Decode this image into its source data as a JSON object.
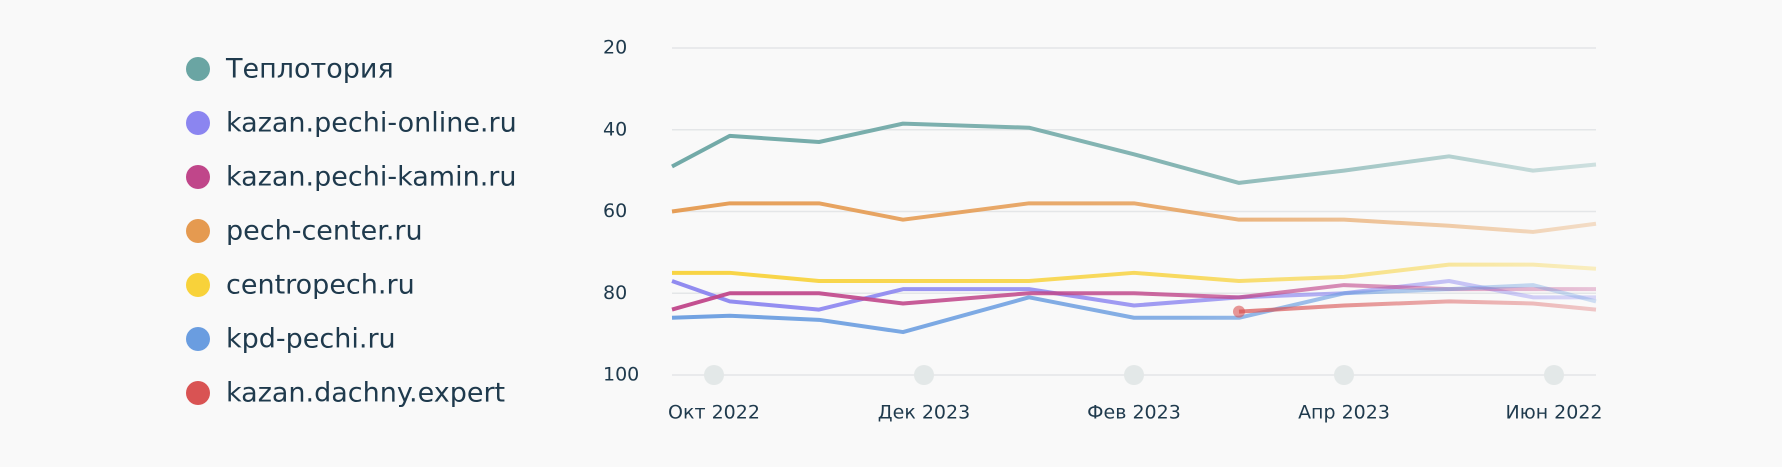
{
  "chart_data": {
    "type": "line",
    "x": [
      -0.4,
      0.15,
      1,
      1.8,
      3,
      4,
      5,
      6,
      7,
      7.8,
      8.4
    ],
    "xlim": [
      -0.4,
      8.4
    ],
    "xticks": [
      {
        "value": 0,
        "label": "Окт 2022"
      },
      {
        "value": 2,
        "label": "Дек 2023"
      },
      {
        "value": 4,
        "label": "Фев 2023"
      },
      {
        "value": 6,
        "label": "Апр 2023"
      },
      {
        "value": 8,
        "label": "Июн 2022"
      }
    ],
    "ylim": [
      20,
      100
    ],
    "y_reversed": true,
    "yticks": [
      20,
      40,
      60,
      80,
      100
    ],
    "grid": true,
    "series": [
      {
        "name": "Теплотория",
        "color": "#6aa5a3",
        "values": [
          49,
          41.5,
          43,
          38.5,
          39.5,
          46,
          53,
          50,
          46.5,
          50,
          48.5
        ]
      },
      {
        "name": "kazan.pechi-online.ru",
        "color": "#8b85f0",
        "values": [
          77,
          82,
          84,
          79,
          79,
          83,
          81,
          80,
          77,
          81,
          81
        ]
      },
      {
        "name": "kazan.pechi-kamin.ru",
        "color": "#c0468a",
        "values": [
          84,
          80,
          80,
          82.5,
          80,
          80,
          81,
          78,
          79,
          79,
          79
        ]
      },
      {
        "name": "pech-center.ru",
        "color": "#e59a50",
        "values": [
          60,
          58,
          58,
          62,
          58,
          58,
          62,
          62,
          63.5,
          65,
          63
        ]
      },
      {
        "name": "centropech.ru",
        "color": "#f8d23a",
        "values": [
          75,
          75,
          77,
          77,
          77,
          75,
          77,
          76,
          73,
          73,
          74
        ]
      },
      {
        "name": "kpd-pechi.ru",
        "color": "#6a9de0",
        "values": [
          86,
          85.5,
          86.5,
          89.5,
          81,
          86,
          86,
          80,
          79,
          78,
          82
        ]
      },
      {
        "name": "kazan.dachny.expert",
        "color": "#d95353",
        "values": [
          null,
          null,
          null,
          null,
          null,
          null,
          84.5,
          83,
          82,
          82.5,
          84
        ]
      }
    ]
  }
}
